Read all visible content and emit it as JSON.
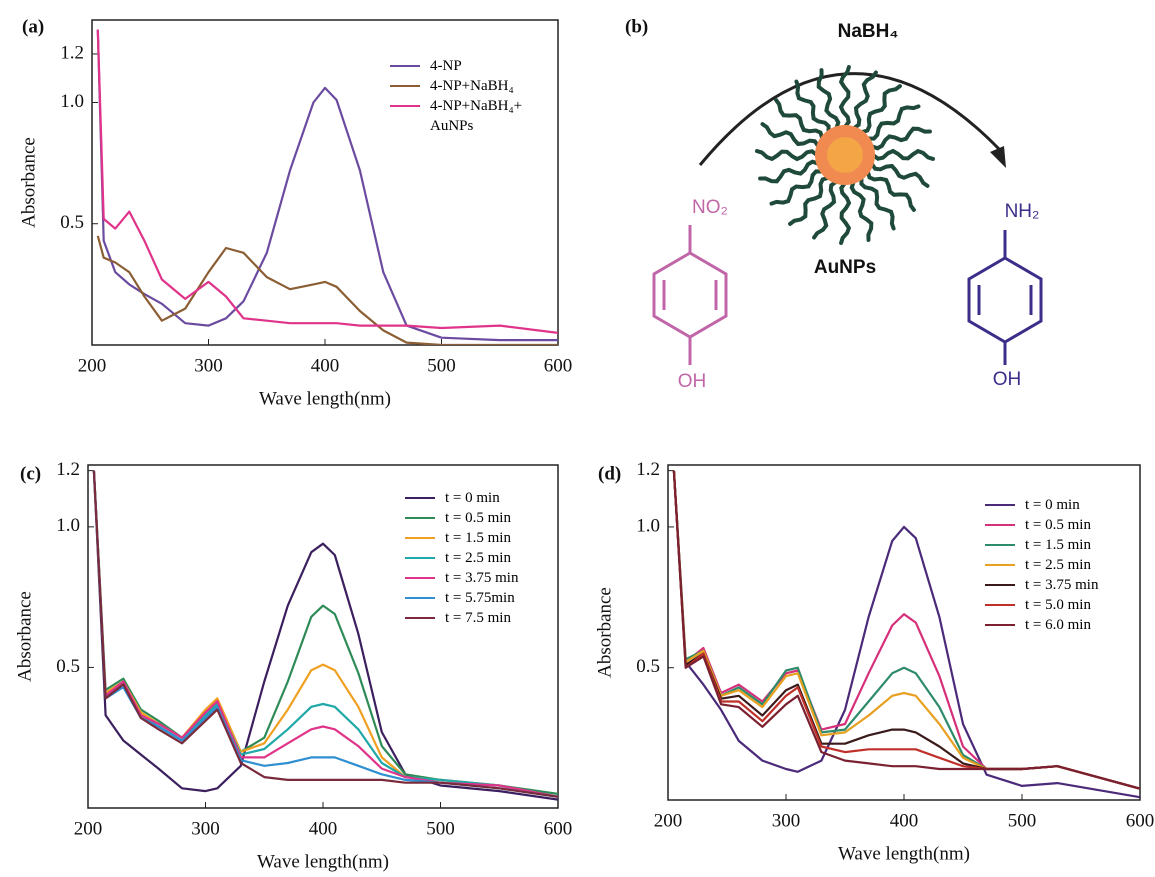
{
  "chart_data": [
    {
      "type": "line",
      "panel": "(a)",
      "x_label": "Wave length(nm)",
      "y_label": "Absorbance",
      "x": [
        205,
        210,
        220,
        232,
        245,
        260,
        280,
        300,
        315,
        330,
        350,
        370,
        390,
        400,
        410,
        430,
        450,
        470,
        500,
        550,
        600
      ],
      "xlim": [
        200,
        600
      ],
      "xticks": [
        200,
        300,
        400,
        500,
        600
      ],
      "ylim": [
        0,
        1.34
      ],
      "yticks": [
        0.5,
        {
          "value": 1,
          "label": "1.0"
        },
        1.2
      ],
      "legend": "upper right",
      "series": [
        {
          "name": "4-NP",
          "color": "#6b4ba0",
          "values": [
            1.3,
            0.43,
            0.3,
            0.25,
            0.21,
            0.17,
            0.09,
            0.08,
            0.11,
            0.18,
            0.38,
            0.72,
            1.0,
            1.06,
            1.01,
            0.72,
            0.3,
            0.08,
            0.03,
            0.02,
            0.02
          ]
        },
        {
          "name": "4-NP+NaBH₄",
          "color": "#8b5e34",
          "values": [
            0.45,
            0.36,
            0.34,
            0.3,
            0.2,
            0.1,
            0.15,
            0.3,
            0.4,
            0.38,
            0.28,
            0.23,
            0.25,
            0.26,
            0.24,
            0.14,
            0.06,
            0.01,
            0.0,
            0.0,
            0.0
          ]
        },
        {
          "name": "4-NP+NaBH₄+ AuNPs",
          "color": "#e0338a",
          "values": [
            1.3,
            0.52,
            0.48,
            0.55,
            0.43,
            0.27,
            0.19,
            0.26,
            0.2,
            0.11,
            0.1,
            0.09,
            0.09,
            0.09,
            0.09,
            0.08,
            0.08,
            0.08,
            0.07,
            0.08,
            0.05
          ]
        }
      ]
    },
    {
      "type": "line",
      "panel": "(c)",
      "x_label": "Wave length(nm)",
      "y_label": "Absorbance",
      "x": [
        205,
        215,
        230,
        245,
        260,
        280,
        300,
        310,
        330,
        350,
        370,
        390,
        400,
        410,
        430,
        450,
        470,
        500,
        550,
        600
      ],
      "xlim": [
        200,
        600
      ],
      "xticks": [
        200,
        300,
        400,
        500,
        600
      ],
      "ylim": [
        0,
        1.22
      ],
      "yticks": [
        0.5,
        {
          "value": 1,
          "label": "1.0"
        },
        1.2
      ],
      "legend": "upper right",
      "series": [
        {
          "name": "t = 0 min",
          "color": "#3b1f5e",
          "values": [
            1.2,
            0.33,
            0.24,
            0.19,
            0.14,
            0.07,
            0.06,
            0.07,
            0.15,
            0.45,
            0.72,
            0.91,
            0.94,
            0.9,
            0.62,
            0.27,
            0.12,
            0.08,
            0.06,
            0.03
          ]
        },
        {
          "name": "t = 0.5 min",
          "color": "#2e8b57",
          "values": [
            1.2,
            0.42,
            0.46,
            0.35,
            0.31,
            0.25,
            0.34,
            0.38,
            0.2,
            0.25,
            0.45,
            0.68,
            0.72,
            0.69,
            0.48,
            0.22,
            0.12,
            0.1,
            0.08,
            0.05
          ]
        },
        {
          "name": "t = 1.5 min",
          "color": "#f0a020",
          "values": [
            1.2,
            0.41,
            0.45,
            0.34,
            0.3,
            0.25,
            0.35,
            0.39,
            0.2,
            0.23,
            0.35,
            0.49,
            0.51,
            0.49,
            0.36,
            0.18,
            0.11,
            0.1,
            0.08,
            0.04
          ]
        },
        {
          "name": "t = 2.5 min",
          "color": "#20a8a8",
          "values": [
            1.2,
            0.4,
            0.44,
            0.33,
            0.29,
            0.24,
            0.33,
            0.37,
            0.19,
            0.21,
            0.28,
            0.36,
            0.37,
            0.36,
            0.28,
            0.16,
            0.11,
            0.1,
            0.08,
            0.04
          ]
        },
        {
          "name": "t = 3.75 min",
          "color": "#e0338a",
          "values": [
            1.2,
            0.4,
            0.45,
            0.33,
            0.3,
            0.25,
            0.34,
            0.38,
            0.18,
            0.18,
            0.23,
            0.28,
            0.29,
            0.28,
            0.22,
            0.14,
            0.11,
            0.09,
            0.08,
            0.04
          ]
        },
        {
          "name": "t = 5.75min",
          "color": "#2f8fd0",
          "values": [
            1.2,
            0.39,
            0.43,
            0.32,
            0.29,
            0.24,
            0.32,
            0.36,
            0.17,
            0.15,
            0.16,
            0.18,
            0.18,
            0.18,
            0.15,
            0.12,
            0.1,
            0.09,
            0.07,
            0.04
          ]
        },
        {
          "name": "t = 7.5 min",
          "color": "#7a2a3a",
          "values": [
            1.2,
            0.39,
            0.44,
            0.32,
            0.28,
            0.23,
            0.31,
            0.35,
            0.16,
            0.11,
            0.1,
            0.1,
            0.1,
            0.1,
            0.1,
            0.1,
            0.09,
            0.09,
            0.07,
            0.04
          ]
        }
      ]
    },
    {
      "type": "line",
      "panel": "(d)",
      "x_label": "Wave length(nm)",
      "y_label": "Absorbance",
      "x": [
        205,
        215,
        230,
        245,
        260,
        280,
        300,
        310,
        330,
        350,
        370,
        390,
        400,
        410,
        430,
        450,
        470,
        500,
        530,
        600
      ],
      "xlim": [
        200,
        600
      ],
      "xticks": [
        200,
        300,
        400,
        500,
        600
      ],
      "ylim": [
        0.03,
        1.22
      ],
      "yticks": [
        0.5,
        {
          "value": 1,
          "label": "1.0"
        },
        1.2
      ],
      "legend": "upper right",
      "series": [
        {
          "name": "t = 0 min",
          "color": "#4b2a7a",
          "values": [
            1.2,
            0.52,
            0.44,
            0.35,
            0.24,
            0.17,
            0.14,
            0.13,
            0.17,
            0.35,
            0.68,
            0.95,
            1.0,
            0.96,
            0.68,
            0.3,
            0.12,
            0.08,
            0.09,
            0.04
          ]
        },
        {
          "name": "t = 0.5 min",
          "color": "#d6307a",
          "values": [
            1.2,
            0.52,
            0.57,
            0.41,
            0.44,
            0.38,
            0.48,
            0.49,
            0.28,
            0.3,
            0.48,
            0.65,
            0.69,
            0.66,
            0.47,
            0.22,
            0.14,
            0.14,
            0.15,
            0.07
          ]
        },
        {
          "name": "t = 1.5 min",
          "color": "#2e8b6a",
          "values": [
            1.2,
            0.53,
            0.56,
            0.4,
            0.43,
            0.37,
            0.49,
            0.5,
            0.27,
            0.28,
            0.38,
            0.48,
            0.5,
            0.48,
            0.36,
            0.19,
            0.14,
            0.14,
            0.15,
            0.07
          ]
        },
        {
          "name": "t = 2.5 min",
          "color": "#e8a020",
          "values": [
            1.2,
            0.52,
            0.56,
            0.4,
            0.42,
            0.36,
            0.47,
            0.48,
            0.26,
            0.27,
            0.33,
            0.4,
            0.41,
            0.4,
            0.3,
            0.18,
            0.14,
            0.14,
            0.15,
            0.07
          ]
        },
        {
          "name": "t = 3.75 min",
          "color": "#3a1a1a",
          "values": [
            1.2,
            0.51,
            0.55,
            0.39,
            0.4,
            0.33,
            0.42,
            0.44,
            0.23,
            0.23,
            0.26,
            0.28,
            0.28,
            0.27,
            0.22,
            0.16,
            0.14,
            0.14,
            0.15,
            0.07
          ]
        },
        {
          "name": "t = 5.0 min",
          "color": "#c0302a",
          "values": [
            1.2,
            0.5,
            0.55,
            0.38,
            0.38,
            0.31,
            0.4,
            0.43,
            0.22,
            0.2,
            0.21,
            0.21,
            0.21,
            0.21,
            0.18,
            0.15,
            0.14,
            0.14,
            0.15,
            0.07
          ]
        },
        {
          "name": "t = 6.0 min",
          "color": "#7a2030",
          "values": [
            1.2,
            0.5,
            0.54,
            0.37,
            0.36,
            0.29,
            0.37,
            0.4,
            0.2,
            0.17,
            0.16,
            0.15,
            0.15,
            0.15,
            0.14,
            0.14,
            0.14,
            0.14,
            0.15,
            0.07
          ]
        }
      ]
    }
  ],
  "diagram": {
    "panel": "(b)",
    "reagent": "NaBH₄",
    "catalyst": "AuNPs",
    "reactant_top": "NO₂",
    "reactant_bottom": "OH",
    "product_top": "NH₂",
    "product_bottom": "OH"
  }
}
